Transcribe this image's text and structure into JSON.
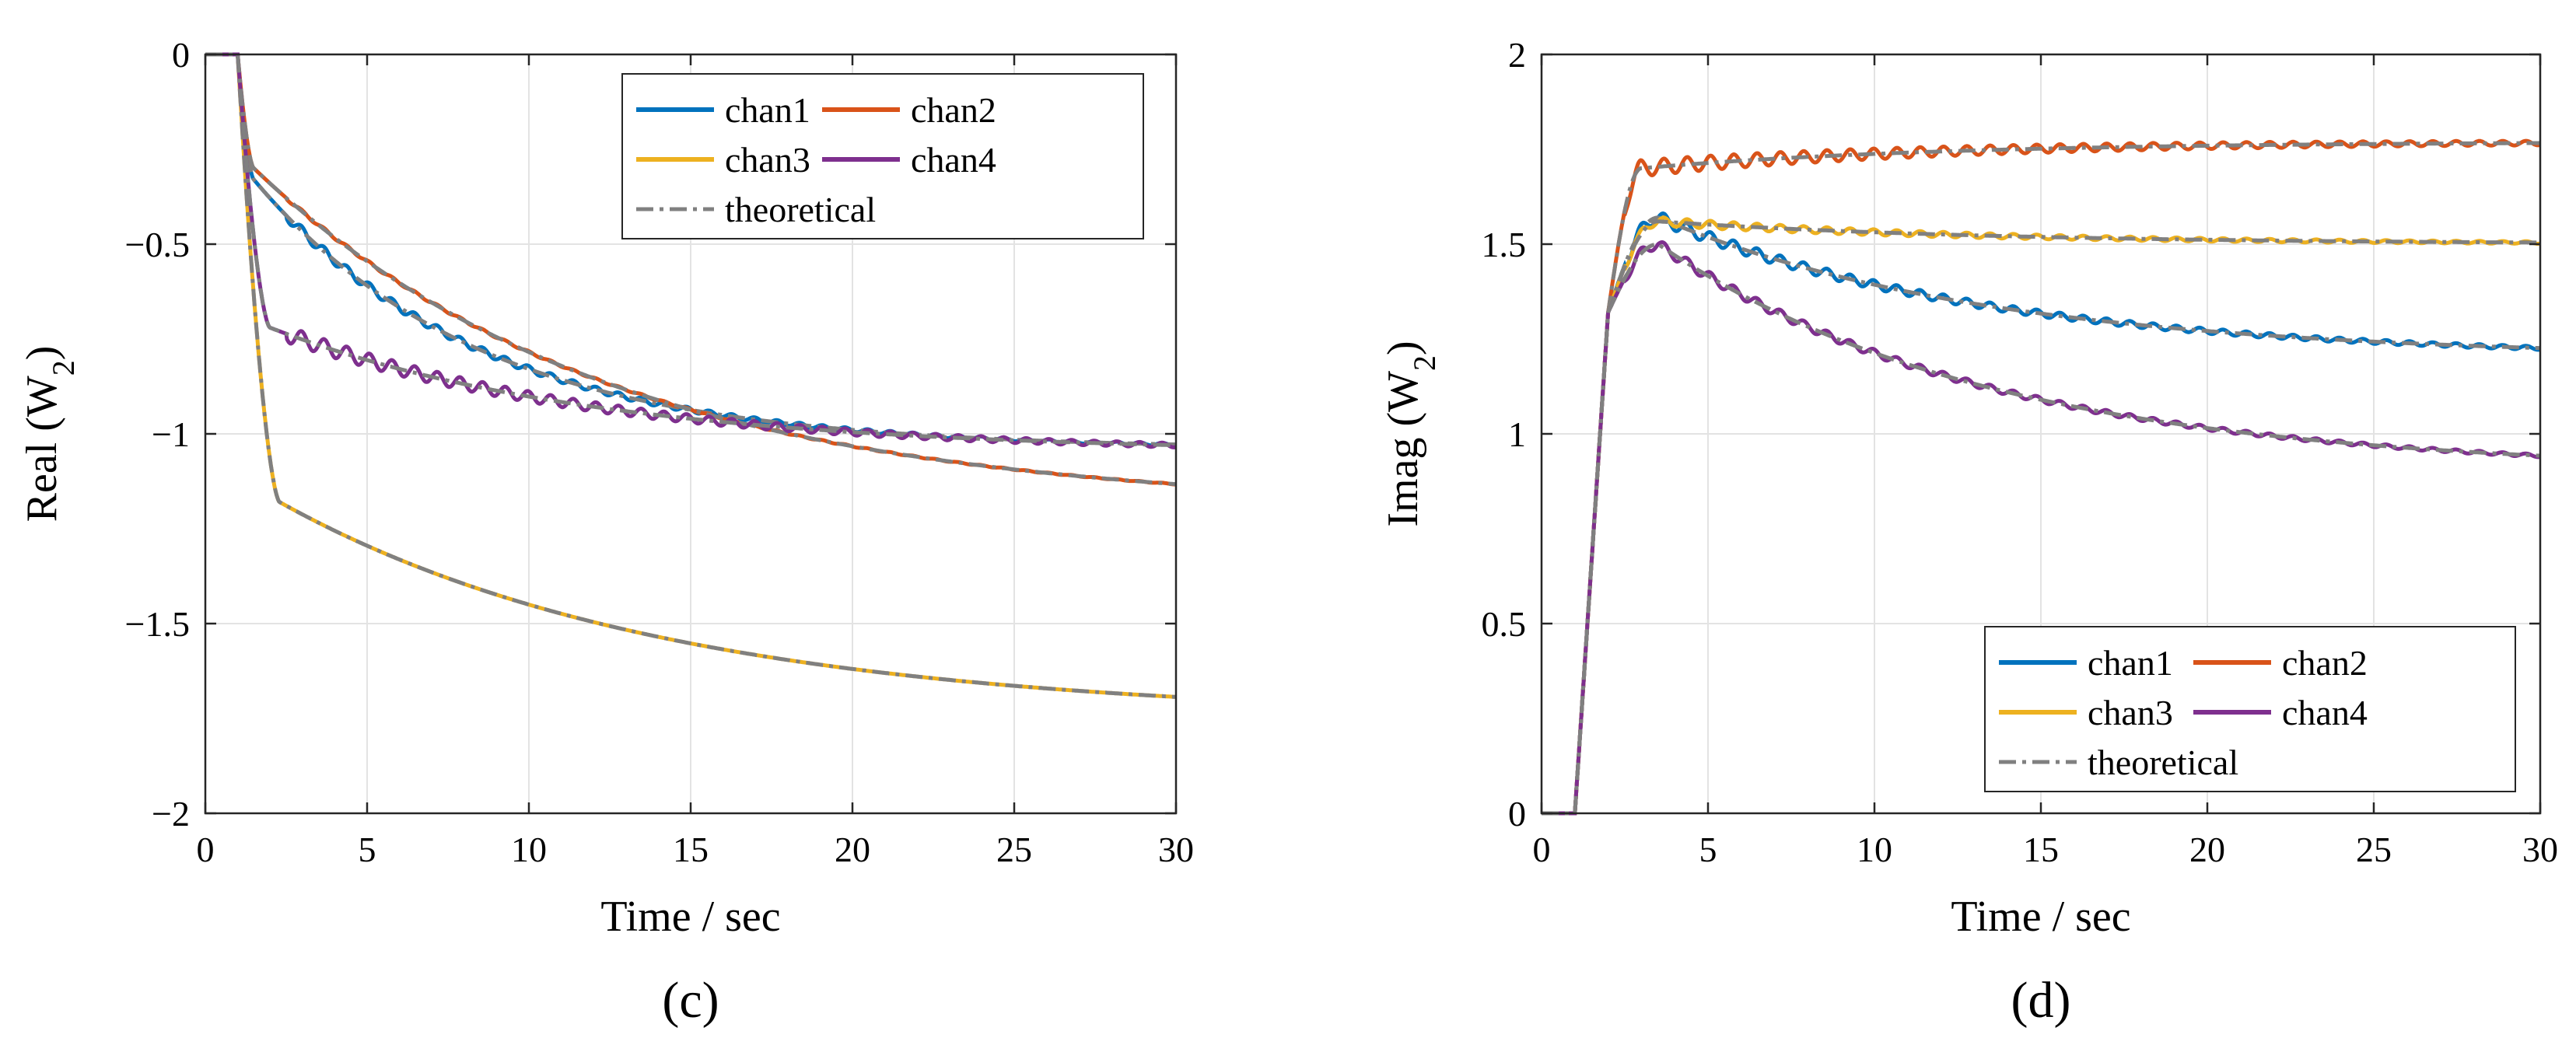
{
  "colors": {
    "chan1": "#0072BD",
    "chan2": "#D95319",
    "chan3": "#EDB120",
    "chan4": "#7E2F8E",
    "theoretical": "#808080"
  },
  "chart_data": [
    {
      "type": "line",
      "panel_label": "(c)",
      "xlabel": "Time / sec",
      "ylabel_main": "Real (W",
      "ylabel_sub": "2",
      "ylabel_close": ")",
      "xlim": [
        0,
        30
      ],
      "ylim": [
        -2,
        0
      ],
      "xticks": [
        0,
        5,
        10,
        15,
        20,
        25,
        30
      ],
      "yticks": [
        0,
        -0.5,
        -1,
        -1.5,
        -2
      ],
      "ytick_labels": [
        "0",
        "−0.5",
        "−1",
        "−1.5",
        "−2"
      ],
      "grid": true,
      "legend_position": "top-right",
      "legend": [
        "chan1",
        "chan2",
        "chan3",
        "chan4",
        "theoretical"
      ],
      "series": [
        {
          "name": "chan1",
          "t_start": 1,
          "final": -1.04,
          "knee": -0.33,
          "knee_t": 1.5,
          "tau": 7,
          "ripple": 0.013
        },
        {
          "name": "chan2",
          "t_start": 1,
          "final": -1.2,
          "knee": -0.3,
          "knee_t": 1.5,
          "tau": 11,
          "ripple": 0.004
        },
        {
          "name": "chan3",
          "t_start": 1,
          "final": -1.75,
          "knee": -1.18,
          "knee_t": 2.3,
          "tau": 12,
          "ripple": 0.0
        },
        {
          "name": "chan4",
          "t_start": 1,
          "final": -1.05,
          "knee": -0.72,
          "knee_t": 2.0,
          "tau": 10,
          "ripple": 0.022
        }
      ]
    },
    {
      "type": "line",
      "panel_label": "(d)",
      "xlabel": "Time / sec",
      "ylabel_main": "Imag (W",
      "ylabel_sub": "2",
      "ylabel_close": ")",
      "xlim": [
        0,
        30
      ],
      "ylim": [
        0,
        2
      ],
      "xticks": [
        0,
        5,
        10,
        15,
        20,
        25,
        30
      ],
      "yticks": [
        0,
        0.5,
        1,
        1.5,
        2
      ],
      "ytick_labels": [
        "0",
        "0.5",
        "1",
        "1.5",
        "2"
      ],
      "grid": true,
      "legend_position": "bottom-right",
      "legend": [
        "chan1",
        "chan2",
        "chan3",
        "chan4",
        "theoretical"
      ],
      "series": [
        {
          "name": "chan1",
          "t_start": 1,
          "final": 1.2,
          "peak": 1.57,
          "peak_t": 3.5,
          "tau": 10,
          "ripple": 0.018
        },
        {
          "name": "chan2",
          "t_start": 1,
          "final": 1.77,
          "peak": 1.7,
          "peak_t": 3.0,
          "tau": 9,
          "ripple": 0.022
        },
        {
          "name": "chan3",
          "t_start": 1,
          "final": 1.5,
          "peak": 1.56,
          "peak_t": 3.5,
          "tau": 10,
          "ripple": 0.012
        },
        {
          "name": "chan4",
          "t_start": 1,
          "final": 0.9,
          "peak": 1.5,
          "peak_t": 3.5,
          "tau": 10,
          "ripple": 0.015
        }
      ]
    }
  ]
}
